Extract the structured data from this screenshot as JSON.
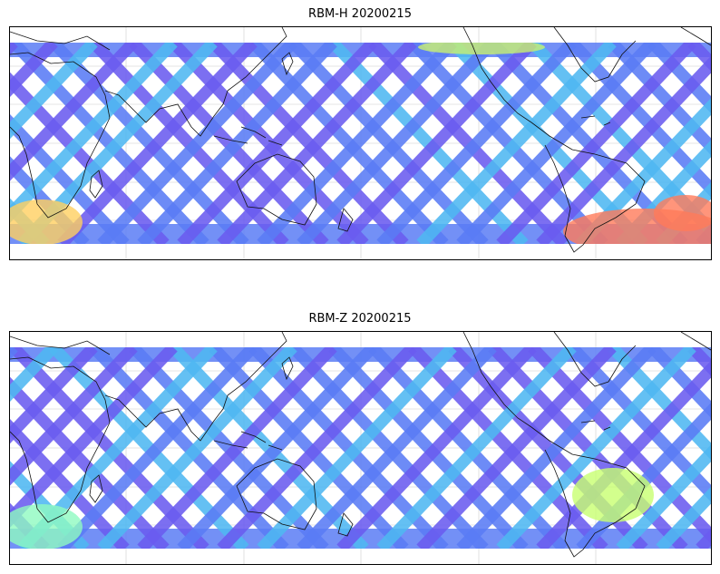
{
  "panels": [
    {
      "title": "RBM-H 20200215",
      "swath_colors": [
        "#6a5cf0",
        "#5a7cf5",
        "#4fb8f2",
        "#55e8e0"
      ],
      "hotspots": [
        {
          "region": "south-america-south",
          "color": "#ff7a5a"
        },
        {
          "region": "south-indian-ocean-west",
          "color": "#ffd060"
        },
        {
          "region": "north-pacific-east",
          "color": "#c8f070"
        }
      ]
    },
    {
      "title": "RBM-Z 20200215",
      "swath_colors": [
        "#6a5cf0",
        "#5a7cf5",
        "#4fb8f2",
        "#55e8e0"
      ],
      "hotspots": [
        {
          "region": "south-america-central",
          "color": "#c8ff70"
        },
        {
          "region": "south-indian-ocean-west",
          "color": "#8ffac0"
        }
      ]
    }
  ],
  "map": {
    "projection": "PlateCarree",
    "central_longitude": 150,
    "gridlines": true,
    "coastlines": true,
    "colormap": "jet"
  }
}
